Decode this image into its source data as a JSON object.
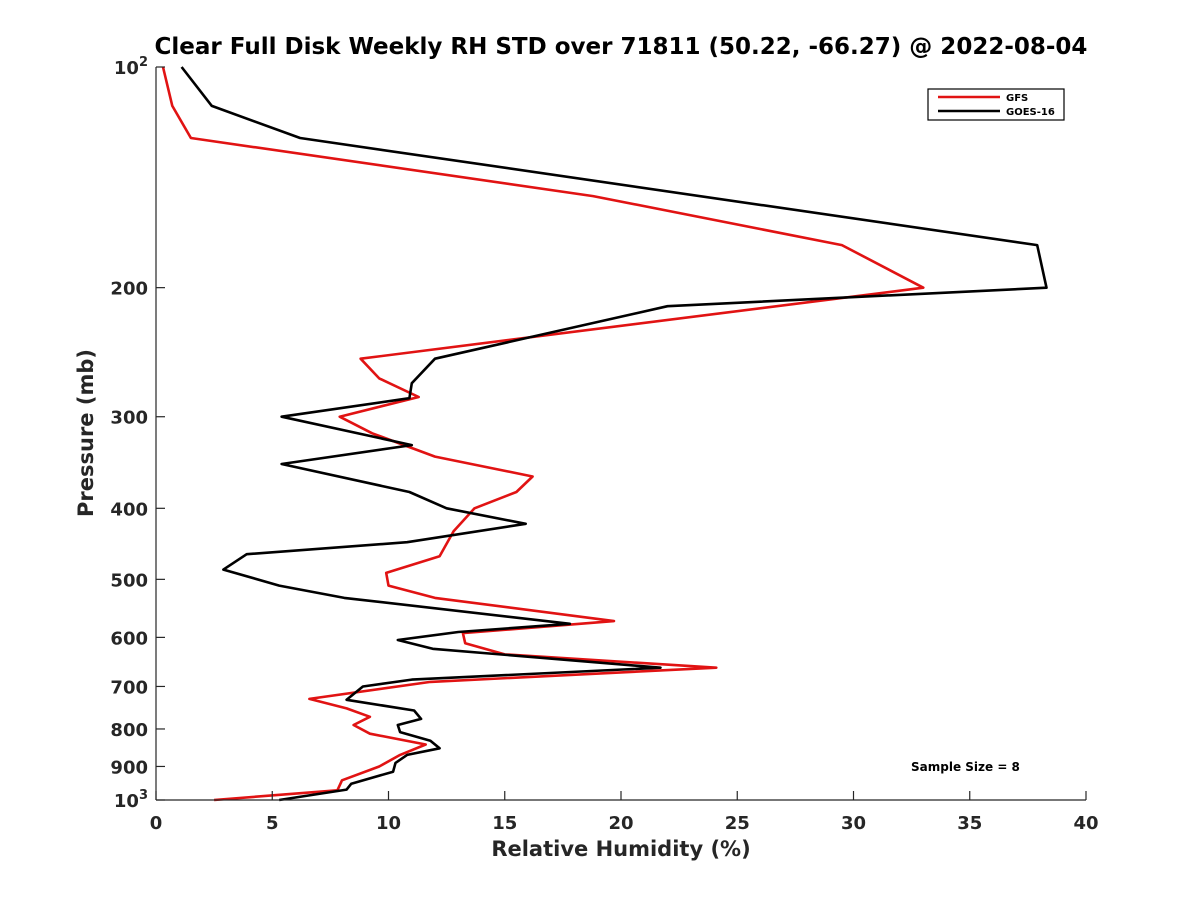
{
  "chart_data": {
    "type": "line",
    "title": "Clear Full Disk Weekly RH STD over 71811 (50.22, -66.27) @ 2022-08-04",
    "xlabel": "Relative Humidity (%)",
    "ylabel": "Pressure (mb)",
    "xlim": [
      0,
      40
    ],
    "ylim": [
      100,
      1000
    ],
    "yscale": "log",
    "y_reversed": true,
    "grid": false,
    "x_ticks": [
      {
        "value": 0,
        "label": "0"
      },
      {
        "value": 5,
        "label": "5"
      },
      {
        "value": 10,
        "label": "10"
      },
      {
        "value": 15,
        "label": "15"
      },
      {
        "value": 20,
        "label": "20"
      },
      {
        "value": 25,
        "label": "25"
      },
      {
        "value": 30,
        "label": "30"
      },
      {
        "value": 35,
        "label": "35"
      },
      {
        "value": 40,
        "label": "40"
      }
    ],
    "y_ticks": [
      {
        "value": 100,
        "label": "10",
        "sup": "2"
      },
      {
        "value": 200,
        "label": "200"
      },
      {
        "value": 300,
        "label": "300"
      },
      {
        "value": 400,
        "label": "400"
      },
      {
        "value": 500,
        "label": "500"
      },
      {
        "value": 600,
        "label": "600"
      },
      {
        "value": 700,
        "label": "700"
      },
      {
        "value": 800,
        "label": "800"
      },
      {
        "value": 900,
        "label": "900"
      },
      {
        "value": 1000,
        "label": "10",
        "sup": "3"
      }
    ],
    "legend": {
      "position": "top-right",
      "entries": [
        {
          "name": "GFS",
          "color": "#e11313"
        },
        {
          "name": "GOES-16",
          "color": "#000000"
        }
      ]
    },
    "annotation": "Sample Size = 8",
    "series": [
      {
        "name": "GFS",
        "color": "#e11313",
        "points": [
          {
            "x": 0.3,
            "y": 100
          },
          {
            "x": 0.7,
            "y": 113
          },
          {
            "x": 1.5,
            "y": 125
          },
          {
            "x": 18.8,
            "y": 150
          },
          {
            "x": 29.5,
            "y": 175
          },
          {
            "x": 33.0,
            "y": 200
          },
          {
            "x": 8.8,
            "y": 250
          },
          {
            "x": 9.6,
            "y": 266
          },
          {
            "x": 11.3,
            "y": 282
          },
          {
            "x": 7.9,
            "y": 300
          },
          {
            "x": 9.3,
            "y": 316
          },
          {
            "x": 12.0,
            "y": 340
          },
          {
            "x": 16.2,
            "y": 362
          },
          {
            "x": 15.5,
            "y": 380
          },
          {
            "x": 13.7,
            "y": 400
          },
          {
            "x": 12.8,
            "y": 430
          },
          {
            "x": 12.2,
            "y": 465
          },
          {
            "x": 9.9,
            "y": 490
          },
          {
            "x": 10.0,
            "y": 510
          },
          {
            "x": 12.0,
            "y": 530
          },
          {
            "x": 19.7,
            "y": 570
          },
          {
            "x": 13.2,
            "y": 592
          },
          {
            "x": 13.3,
            "y": 611
          },
          {
            "x": 15.0,
            "y": 633
          },
          {
            "x": 24.1,
            "y": 660
          },
          {
            "x": 11.8,
            "y": 690
          },
          {
            "x": 6.6,
            "y": 728
          },
          {
            "x": 8.2,
            "y": 750
          },
          {
            "x": 9.2,
            "y": 770
          },
          {
            "x": 8.5,
            "y": 790
          },
          {
            "x": 9.2,
            "y": 812
          },
          {
            "x": 11.6,
            "y": 840
          },
          {
            "x": 10.5,
            "y": 868
          },
          {
            "x": 9.6,
            "y": 900
          },
          {
            "x": 8.0,
            "y": 940
          },
          {
            "x": 7.8,
            "y": 970
          },
          {
            "x": 2.5,
            "y": 1000
          }
        ]
      },
      {
        "name": "GOES-16",
        "color": "#000000",
        "points": [
          {
            "x": 1.1,
            "y": 100
          },
          {
            "x": 2.4,
            "y": 113
          },
          {
            "x": 6.2,
            "y": 125
          },
          {
            "x": 37.9,
            "y": 175
          },
          {
            "x": 38.3,
            "y": 200
          },
          {
            "x": 22.0,
            "y": 212
          },
          {
            "x": 12.0,
            "y": 250
          },
          {
            "x": 11.0,
            "y": 270
          },
          {
            "x": 10.9,
            "y": 283
          },
          {
            "x": 5.4,
            "y": 300
          },
          {
            "x": 11.0,
            "y": 328
          },
          {
            "x": 5.4,
            "y": 348
          },
          {
            "x": 10.9,
            "y": 380
          },
          {
            "x": 12.5,
            "y": 400
          },
          {
            "x": 15.9,
            "y": 420
          },
          {
            "x": 10.8,
            "y": 445
          },
          {
            "x": 3.9,
            "y": 462
          },
          {
            "x": 2.9,
            "y": 485
          },
          {
            "x": 5.3,
            "y": 510
          },
          {
            "x": 8.1,
            "y": 530
          },
          {
            "x": 17.8,
            "y": 575
          },
          {
            "x": 13.0,
            "y": 590
          },
          {
            "x": 10.4,
            "y": 605
          },
          {
            "x": 11.9,
            "y": 622
          },
          {
            "x": 21.7,
            "y": 660
          },
          {
            "x": 11.0,
            "y": 685
          },
          {
            "x": 8.9,
            "y": 700
          },
          {
            "x": 8.2,
            "y": 730
          },
          {
            "x": 11.1,
            "y": 755
          },
          {
            "x": 11.4,
            "y": 775
          },
          {
            "x": 10.4,
            "y": 790
          },
          {
            "x": 10.5,
            "y": 808
          },
          {
            "x": 11.8,
            "y": 830
          },
          {
            "x": 12.2,
            "y": 850
          },
          {
            "x": 10.8,
            "y": 868
          },
          {
            "x": 10.3,
            "y": 890
          },
          {
            "x": 10.2,
            "y": 915
          },
          {
            "x": 8.4,
            "y": 950
          },
          {
            "x": 8.2,
            "y": 968
          },
          {
            "x": 5.3,
            "y": 1000
          }
        ]
      }
    ]
  }
}
